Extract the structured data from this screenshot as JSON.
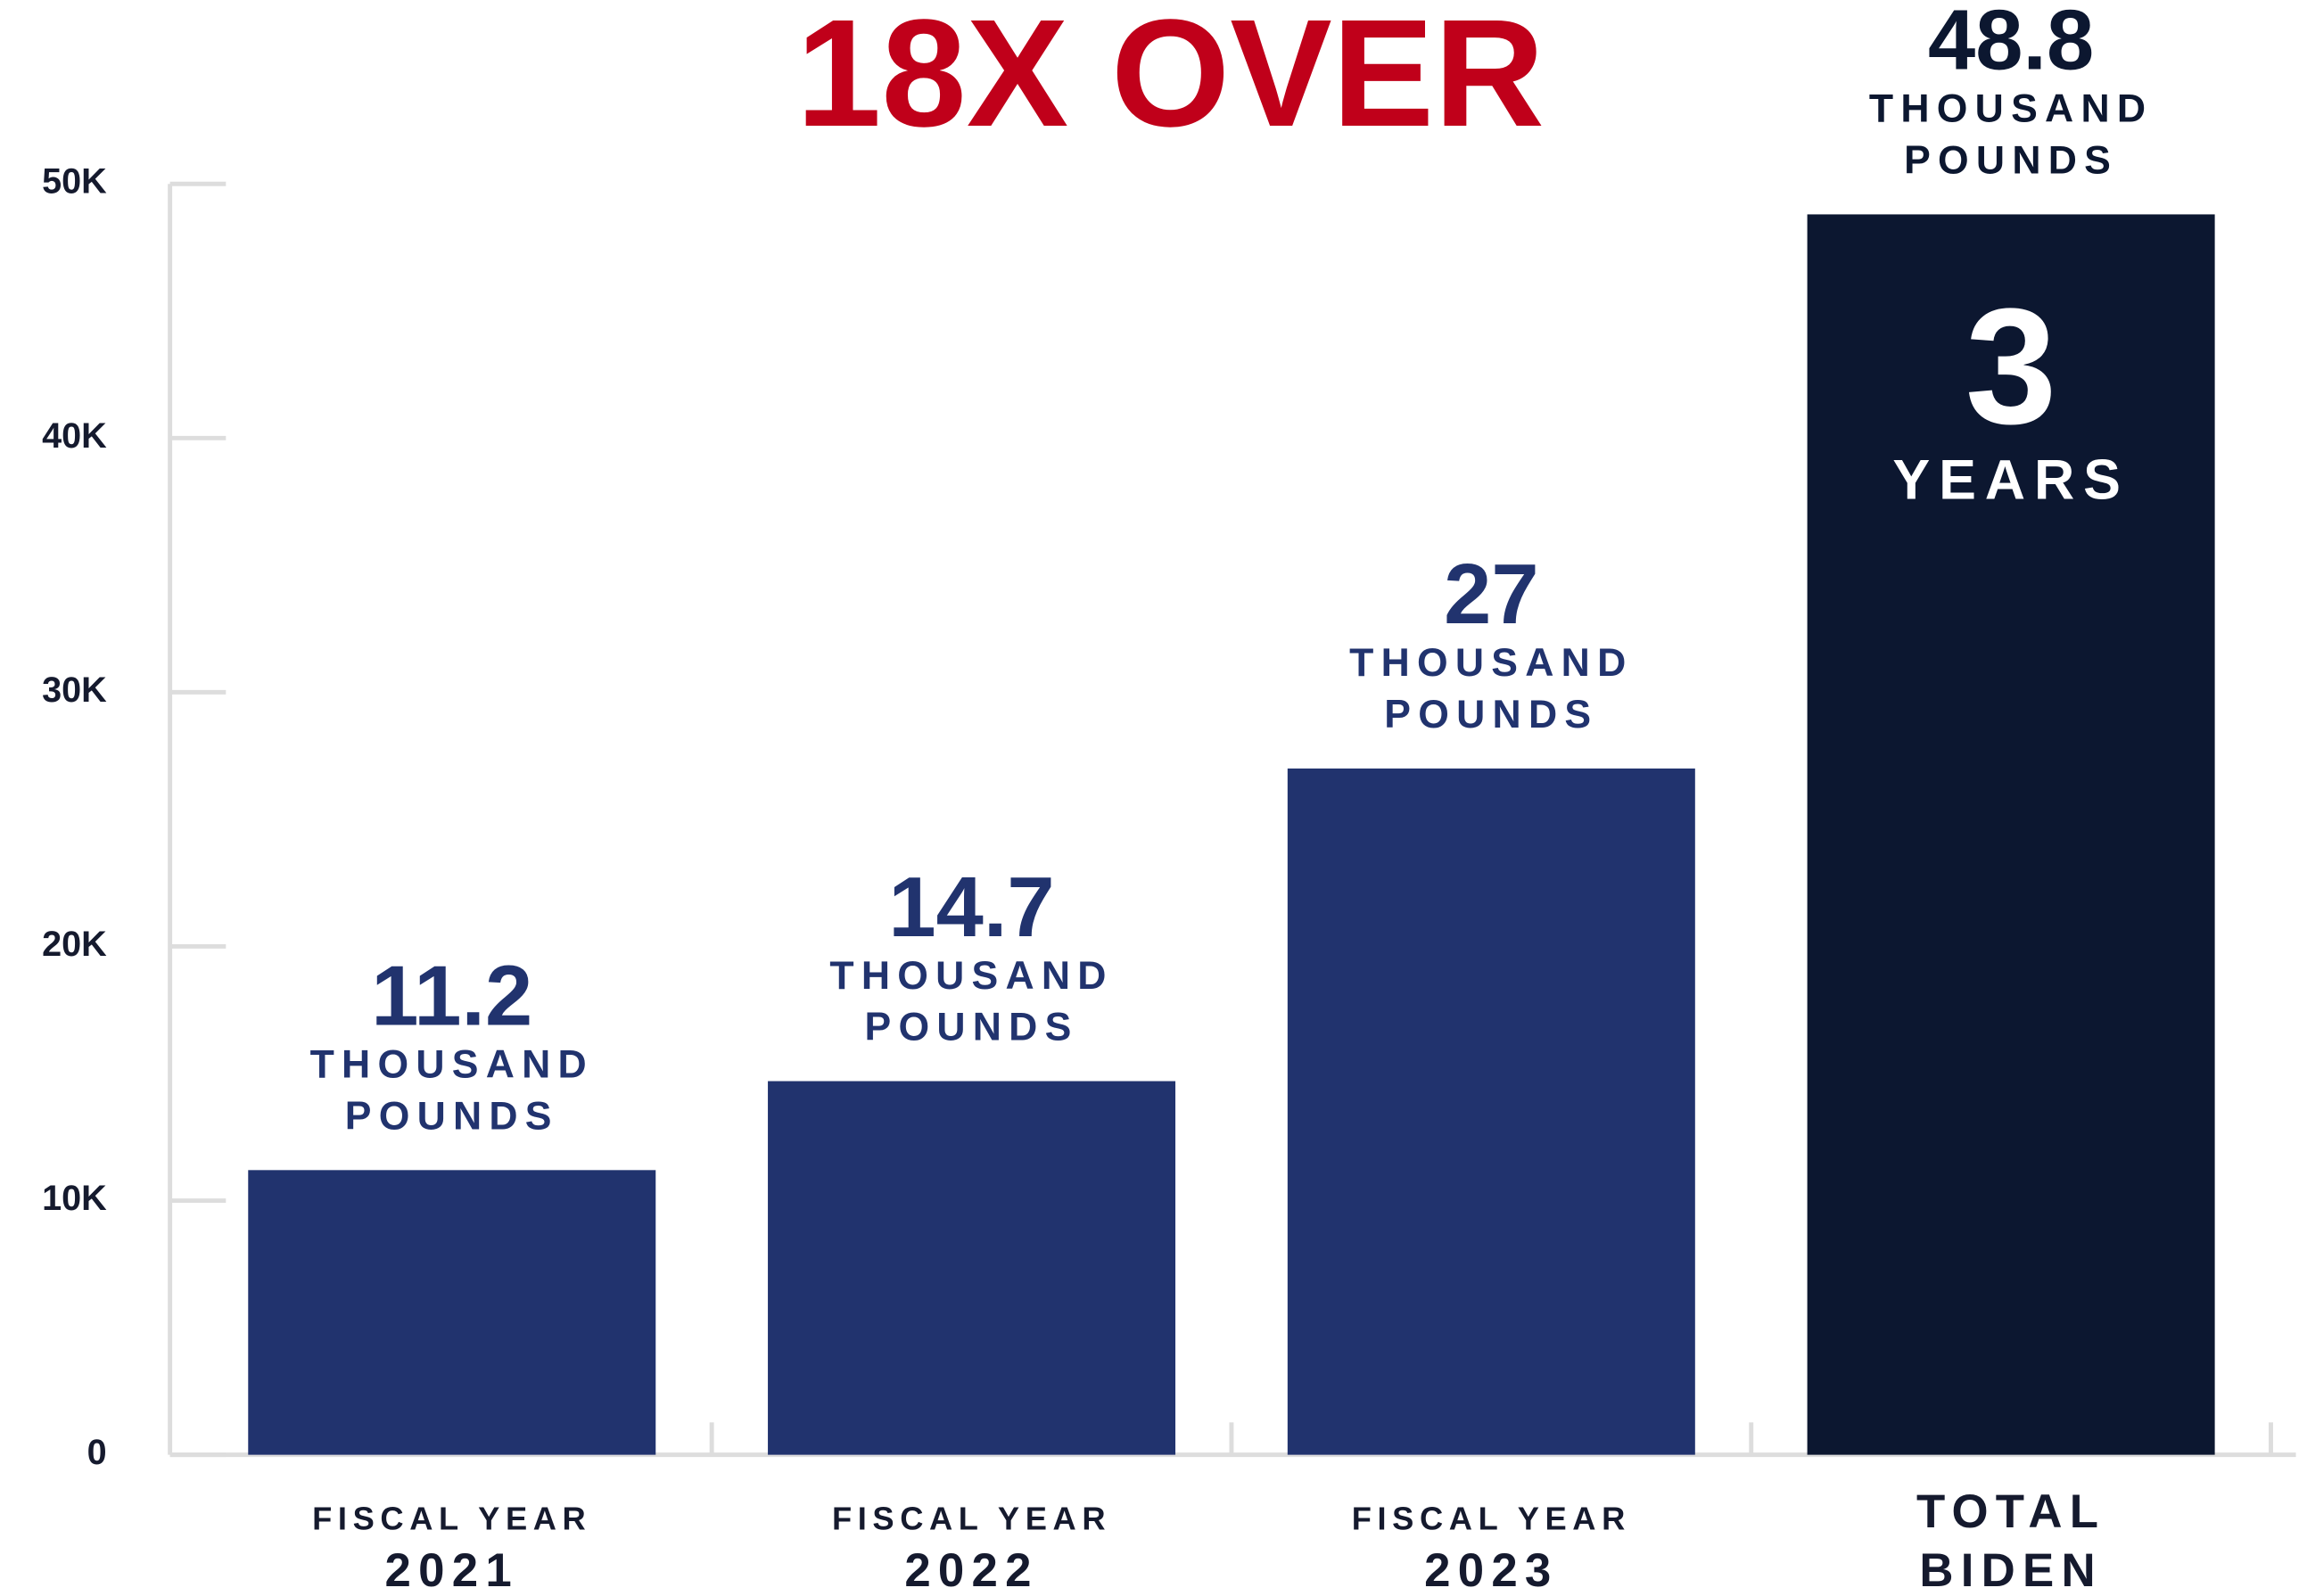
{
  "chart_data": {
    "type": "bar",
    "title": "18X OVER",
    "categories": [
      [
        "FISCAL YEAR",
        "2021"
      ],
      [
        "FISCAL YEAR",
        "2022"
      ],
      [
        "FISCAL YEAR",
        "2023"
      ],
      [
        "TOTAL",
        "BIDEN"
      ]
    ],
    "values": [
      11200,
      14700,
      27000,
      48800
    ],
    "value_labels": [
      "11.2",
      "14.7",
      "27",
      "48.8"
    ],
    "value_unit": [
      "THOUSAND",
      "POUNDS"
    ],
    "colors": [
      "#21336e",
      "#21336e",
      "#21336e",
      "#0c1730"
    ],
    "annotation": [
      "3",
      "YEARS"
    ],
    "ylim": [
      0,
      50000
    ],
    "yticks": [
      0,
      {
        "value": 10000,
        "label": "10K"
      },
      {
        "value": 20000,
        "label": "20K"
      },
      {
        "value": 30000,
        "label": "30K"
      },
      {
        "value": 40000,
        "label": "40K"
      },
      {
        "value": 50000,
        "label": "50K"
      }
    ],
    "grid": false
  }
}
